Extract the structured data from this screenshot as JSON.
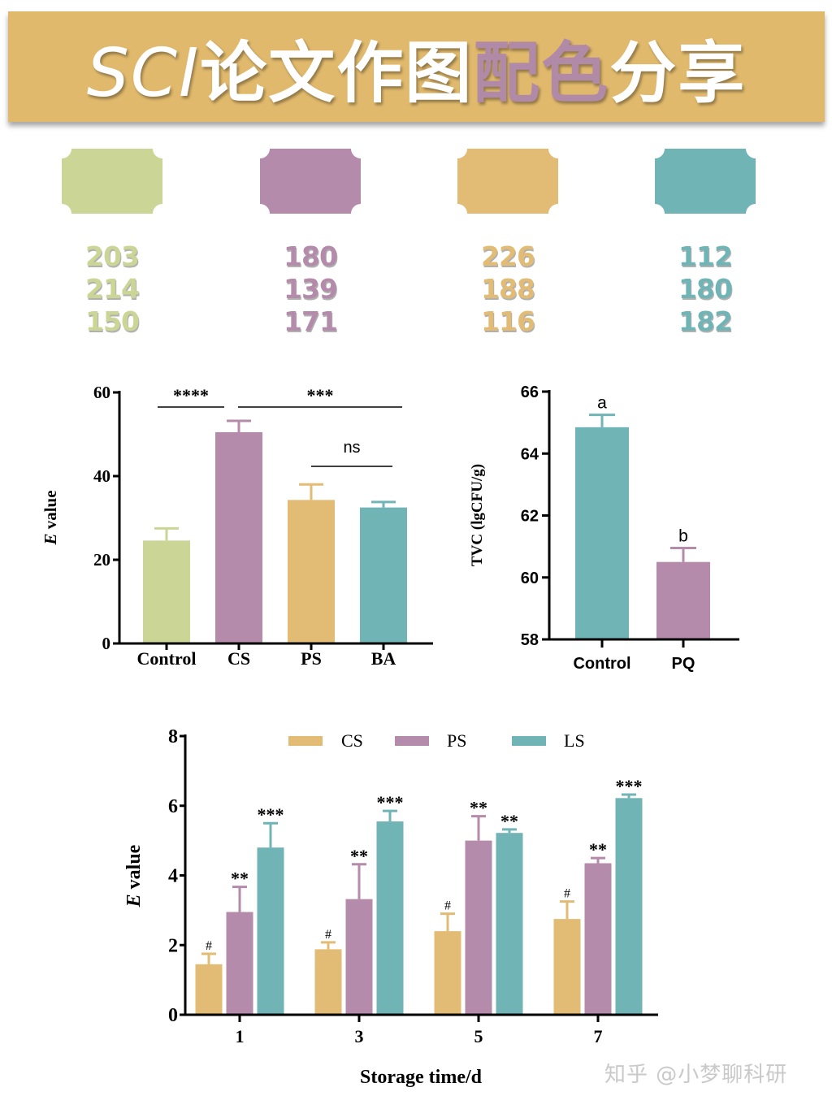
{
  "banner": {
    "title_prefix": "SCI",
    "title_mid": "论文作图",
    "title_highlight": "配色",
    "title_suffix": "分享"
  },
  "palette": [
    {
      "name": "green",
      "hex": "#cbd696",
      "rgb": [
        "203",
        "214",
        "150"
      ]
    },
    {
      "name": "purple",
      "hex": "#b48bab",
      "rgb": [
        "180",
        "139",
        "171"
      ]
    },
    {
      "name": "yellow",
      "hex": "#e2bc74",
      "rgb": [
        "226",
        "188",
        "116"
      ]
    },
    {
      "name": "teal",
      "hex": "#70b4b6",
      "rgb": [
        "112",
        "180",
        "182"
      ]
    }
  ],
  "watermark": "知乎 @小梦聊科研",
  "chart_data": [
    {
      "type": "bar",
      "title": "",
      "xlabel": "",
      "ylabel_italic": "E",
      "ylabel": " value",
      "ylim": [
        0,
        60
      ],
      "yticks": [
        "0",
        "20",
        "40",
        "60"
      ],
      "categories": [
        "Control",
        "CS",
        "PS",
        "BA"
      ],
      "values": [
        24.6,
        50.5,
        34.3,
        32.5
      ],
      "errors": [
        2.9,
        2.7,
        3.7,
        1.3
      ],
      "colors": [
        "#cbd696",
        "#b48bab",
        "#e2bc74",
        "#70b4b6"
      ],
      "significance": [
        {
          "from": 0,
          "to": 1,
          "label": "****"
        },
        {
          "from": 1,
          "to": 3,
          "label": "***"
        },
        {
          "from": 2,
          "to": 3,
          "label": "ns"
        }
      ]
    },
    {
      "type": "bar",
      "title": "",
      "xlabel": "",
      "ylabel": "TVC (lgCFU/g)",
      "ylim": [
        58,
        66
      ],
      "yticks": [
        "58",
        "60",
        "62",
        "64",
        "66"
      ],
      "categories": [
        "Control",
        "PQ"
      ],
      "values": [
        64.85,
        60.5
      ],
      "errors": [
        0.4,
        0.45
      ],
      "colors": [
        "#70b4b6",
        "#b48bab"
      ],
      "letters": [
        "a",
        "b"
      ]
    },
    {
      "type": "bar",
      "title": "",
      "xlabel": "Storage time/d",
      "ylabel_italic": "E",
      "ylabel": " value",
      "ylim": [
        0,
        8
      ],
      "yticks": [
        "0",
        "2",
        "4",
        "6",
        "8"
      ],
      "categories": [
        "1",
        "3",
        "5",
        "7"
      ],
      "legend_position": "top",
      "series": [
        {
          "name": "CS",
          "color": "#e2bc74",
          "values": [
            1.45,
            1.88,
            2.4,
            2.75
          ],
          "errors": [
            0.3,
            0.2,
            0.5,
            0.5
          ],
          "marks": [
            "#",
            "#",
            "#",
            "#"
          ]
        },
        {
          "name": "PS",
          "color": "#b48bab",
          "values": [
            2.95,
            3.32,
            5.0,
            4.35
          ],
          "errors": [
            0.72,
            1.0,
            0.7,
            0.15
          ],
          "marks": [
            "**",
            "**",
            "**",
            "**"
          ]
        },
        {
          "name": "LS",
          "color": "#70b4b6",
          "values": [
            4.8,
            5.55,
            5.22,
            6.22
          ],
          "errors": [
            0.7,
            0.3,
            0.1,
            0.1
          ],
          "marks": [
            "***",
            "***",
            "**",
            "***"
          ]
        }
      ]
    }
  ]
}
